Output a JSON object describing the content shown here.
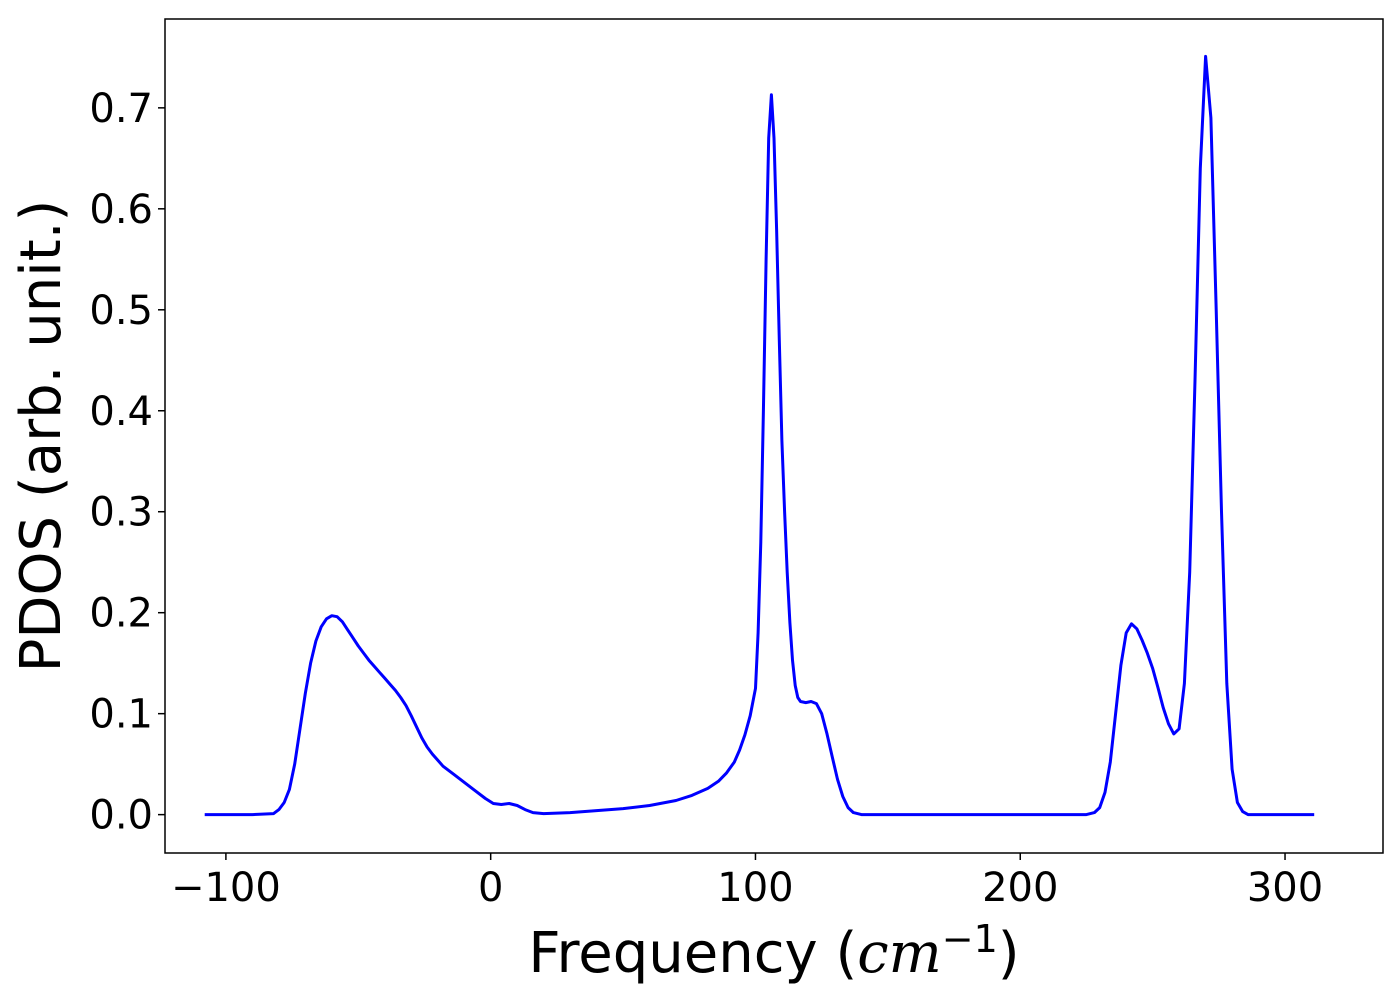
{
  "chart_data": {
    "type": "line",
    "title": "",
    "xlabel": "Frequency ($cm^{-1}$)",
    "xlabel_parts": {
      "prefix": "Frequency (",
      "var": "cm",
      "sup": "−1",
      "suffix": ")"
    },
    "ylabel": "PDOS (arb. unit.)",
    "xlim": [
      -123,
      337
    ],
    "ylim": [
      -0.038,
      0.788
    ],
    "x_ticks": [
      -100,
      0,
      100,
      200,
      300
    ],
    "x_tick_labels": [
      "−100",
      "0",
      "100",
      "200",
      "300"
    ],
    "y_ticks": [
      0.0,
      0.1,
      0.2,
      0.3,
      0.4,
      0.5,
      0.6,
      0.7
    ],
    "y_tick_labels": [
      "0.0",
      "0.1",
      "0.2",
      "0.3",
      "0.4",
      "0.5",
      "0.6",
      "0.7"
    ],
    "grid": false,
    "legend": "none",
    "series": [
      {
        "color": "#0000ff",
        "points": [
          [
            -108,
            0.0
          ],
          [
            -90,
            0.0
          ],
          [
            -82,
            0.001
          ],
          [
            -80,
            0.005
          ],
          [
            -78,
            0.012
          ],
          [
            -76,
            0.025
          ],
          [
            -74,
            0.05
          ],
          [
            -72,
            0.085
          ],
          [
            -70,
            0.12
          ],
          [
            -68,
            0.15
          ],
          [
            -66,
            0.172
          ],
          [
            -64,
            0.186
          ],
          [
            -62,
            0.194
          ],
          [
            -60,
            0.197
          ],
          [
            -58,
            0.196
          ],
          [
            -56,
            0.191
          ],
          [
            -54,
            0.183
          ],
          [
            -52,
            0.175
          ],
          [
            -50,
            0.167
          ],
          [
            -48,
            0.16
          ],
          [
            -46,
            0.153
          ],
          [
            -44,
            0.147
          ],
          [
            -42,
            0.141
          ],
          [
            -40,
            0.135
          ],
          [
            -38,
            0.129
          ],
          [
            -36,
            0.123
          ],
          [
            -34,
            0.116
          ],
          [
            -32,
            0.108
          ],
          [
            -30,
            0.098
          ],
          [
            -28,
            0.087
          ],
          [
            -26,
            0.076
          ],
          [
            -24,
            0.067
          ],
          [
            -22,
            0.06
          ],
          [
            -20,
            0.054
          ],
          [
            -18,
            0.048
          ],
          [
            -14,
            0.04
          ],
          [
            -10,
            0.032
          ],
          [
            -6,
            0.024
          ],
          [
            -2,
            0.016
          ],
          [
            1,
            0.011
          ],
          [
            4,
            0.01
          ],
          [
            7,
            0.011
          ],
          [
            10,
            0.009
          ],
          [
            13,
            0.005
          ],
          [
            16,
            0.002
          ],
          [
            20,
            0.001
          ],
          [
            30,
            0.002
          ],
          [
            40,
            0.004
          ],
          [
            50,
            0.006
          ],
          [
            60,
            0.009
          ],
          [
            70,
            0.014
          ],
          [
            76,
            0.019
          ],
          [
            82,
            0.026
          ],
          [
            86,
            0.033
          ],
          [
            89,
            0.041
          ],
          [
            92,
            0.052
          ],
          [
            94,
            0.064
          ],
          [
            96,
            0.079
          ],
          [
            98,
            0.098
          ],
          [
            100,
            0.125
          ],
          [
            101,
            0.18
          ],
          [
            102,
            0.27
          ],
          [
            103,
            0.4
          ],
          [
            104,
            0.55
          ],
          [
            105,
            0.67
          ],
          [
            106,
            0.713
          ],
          [
            107,
            0.67
          ],
          [
            108,
            0.58
          ],
          [
            109,
            0.47
          ],
          [
            110,
            0.37
          ],
          [
            111,
            0.3
          ],
          [
            112,
            0.24
          ],
          [
            113,
            0.19
          ],
          [
            114,
            0.153
          ],
          [
            115,
            0.128
          ],
          [
            116,
            0.116
          ],
          [
            117,
            0.112
          ],
          [
            119,
            0.111
          ],
          [
            121,
            0.112
          ],
          [
            123,
            0.11
          ],
          [
            125,
            0.1
          ],
          [
            127,
            0.08
          ],
          [
            129,
            0.057
          ],
          [
            131,
            0.035
          ],
          [
            133,
            0.018
          ],
          [
            135,
            0.007
          ],
          [
            137,
            0.002
          ],
          [
            140,
            0.0
          ],
          [
            150,
            0.0
          ],
          [
            200,
            0.0
          ],
          [
            225,
            0.0
          ],
          [
            228,
            0.002
          ],
          [
            230,
            0.007
          ],
          [
            232,
            0.022
          ],
          [
            234,
            0.052
          ],
          [
            236,
            0.1
          ],
          [
            238,
            0.148
          ],
          [
            240,
            0.18
          ],
          [
            242,
            0.189
          ],
          [
            244,
            0.184
          ],
          [
            246,
            0.173
          ],
          [
            248,
            0.16
          ],
          [
            250,
            0.145
          ],
          [
            252,
            0.126
          ],
          [
            254,
            0.106
          ],
          [
            256,
            0.09
          ],
          [
            258,
            0.08
          ],
          [
            260,
            0.085
          ],
          [
            262,
            0.13
          ],
          [
            264,
            0.24
          ],
          [
            266,
            0.43
          ],
          [
            268,
            0.64
          ],
          [
            270,
            0.751
          ],
          [
            272,
            0.69
          ],
          [
            274,
            0.5
          ],
          [
            276,
            0.3
          ],
          [
            278,
            0.13
          ],
          [
            280,
            0.045
          ],
          [
            282,
            0.012
          ],
          [
            284,
            0.003
          ],
          [
            286,
            0.0
          ],
          [
            300,
            0.0
          ],
          [
            311,
            0.0
          ]
        ]
      }
    ]
  }
}
